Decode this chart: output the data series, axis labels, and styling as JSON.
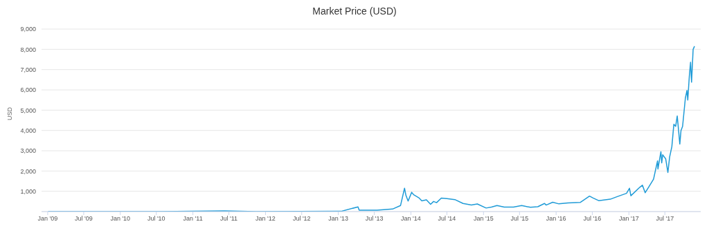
{
  "chart_data": {
    "type": "line",
    "title": "Market Price (USD)",
    "ylabel": "USD",
    "grid": "y",
    "marker": "none",
    "line_style": "solid",
    "legend": false,
    "xlim": [
      "2008-12-01",
      "2017-12-28"
    ],
    "ylim": [
      0,
      9000
    ],
    "yticks": [
      {
        "value": 1000,
        "label": "1,000"
      },
      {
        "value": 2000,
        "label": "2,000"
      },
      {
        "value": 3000,
        "label": "3,000"
      },
      {
        "value": 4000,
        "label": "4,000"
      },
      {
        "value": 5000,
        "label": "5,000"
      },
      {
        "value": 6000,
        "label": "6,000"
      },
      {
        "value": 7000,
        "label": "7,000"
      },
      {
        "value": 8000,
        "label": "8,000"
      },
      {
        "value": 9000,
        "label": "9,000"
      }
    ],
    "xticks": [
      {
        "value": "2009-01-01",
        "label": "Jan '09"
      },
      {
        "value": "2009-07-01",
        "label": "Jul '09"
      },
      {
        "value": "2010-01-01",
        "label": "Jan '10"
      },
      {
        "value": "2010-07-01",
        "label": "Jul '10"
      },
      {
        "value": "2011-01-01",
        "label": "Jan '11"
      },
      {
        "value": "2011-07-01",
        "label": "Jul '11"
      },
      {
        "value": "2012-01-01",
        "label": "Jan '12"
      },
      {
        "value": "2012-07-01",
        "label": "Jul '12"
      },
      {
        "value": "2013-01-01",
        "label": "Jan '13"
      },
      {
        "value": "2013-07-01",
        "label": "Jul '13"
      },
      {
        "value": "2014-01-01",
        "label": "Jan '14"
      },
      {
        "value": "2014-07-01",
        "label": "Jul '14"
      },
      {
        "value": "2015-01-01",
        "label": "Jan '15"
      },
      {
        "value": "2015-07-01",
        "label": "Jul '15"
      },
      {
        "value": "2016-01-01",
        "label": "Jan '16"
      },
      {
        "value": "2016-07-01",
        "label": "Jul '16"
      },
      {
        "value": "2017-01-01",
        "label": "Jan '17"
      },
      {
        "value": "2017-07-01",
        "label": "Jul '17"
      }
    ],
    "x": [
      "2009-01-03",
      "2010-07-15",
      "2011-06-08",
      "2011-11-15",
      "2012-06-15",
      "2013-01-15",
      "2013-04-10",
      "2013-04-16",
      "2013-07-15",
      "2013-10-01",
      "2013-11-10",
      "2013-11-30",
      "2013-12-07",
      "2013-12-18",
      "2014-01-05",
      "2014-01-15",
      "2014-02-10",
      "2014-02-25",
      "2014-03-20",
      "2014-04-10",
      "2014-04-25",
      "2014-05-10",
      "2014-06-03",
      "2014-07-01",
      "2014-08-10",
      "2014-09-20",
      "2014-11-01",
      "2014-12-01",
      "2015-01-14",
      "2015-02-10",
      "2015-03-10",
      "2015-04-15",
      "2015-06-01",
      "2015-07-12",
      "2015-08-25",
      "2015-10-01",
      "2015-11-04",
      "2015-11-12",
      "2015-12-15",
      "2016-01-15",
      "2016-03-01",
      "2016-05-01",
      "2016-06-17",
      "2016-07-05",
      "2016-08-02",
      "2016-09-30",
      "2016-11-01",
      "2016-12-20",
      "2017-01-04",
      "2017-01-11",
      "2017-02-25",
      "2017-03-10",
      "2017-03-24",
      "2017-04-10",
      "2017-05-05",
      "2017-05-25",
      "2017-05-27",
      "2017-06-11",
      "2017-06-15",
      "2017-06-20",
      "2017-07-05",
      "2017-07-16",
      "2017-07-25",
      "2017-08-05",
      "2017-08-15",
      "2017-08-24",
      "2017-09-01",
      "2017-09-05",
      "2017-09-14",
      "2017-09-20",
      "2017-09-28",
      "2017-10-12",
      "2017-10-20",
      "2017-10-24",
      "2017-11-01",
      "2017-11-07",
      "2017-11-12",
      "2017-11-20",
      "2017-11-27"
    ],
    "series": [
      {
        "color": "#1f9bd7",
        "values": [
          0,
          0,
          30,
          3,
          6,
          13,
          230,
          70,
          70,
          125,
          300,
          1150,
          800,
          520,
          950,
          830,
          680,
          530,
          580,
          360,
          500,
          440,
          665,
          640,
          590,
          400,
          325,
          375,
          175,
          220,
          295,
          220,
          225,
          300,
          210,
          237,
          400,
          320,
          460,
          380,
          430,
          450,
          760,
          670,
          540,
          610,
          730,
          900,
          1150,
          780,
          1200,
          1300,
          930,
          1200,
          1600,
          2500,
          2100,
          2950,
          2400,
          2800,
          2600,
          1930,
          2700,
          3200,
          4300,
          4200,
          4710,
          4300,
          3330,
          4000,
          4200,
          5600,
          5970,
          5500,
          6700,
          7360,
          6380,
          8000,
          8150
        ]
      }
    ]
  }
}
